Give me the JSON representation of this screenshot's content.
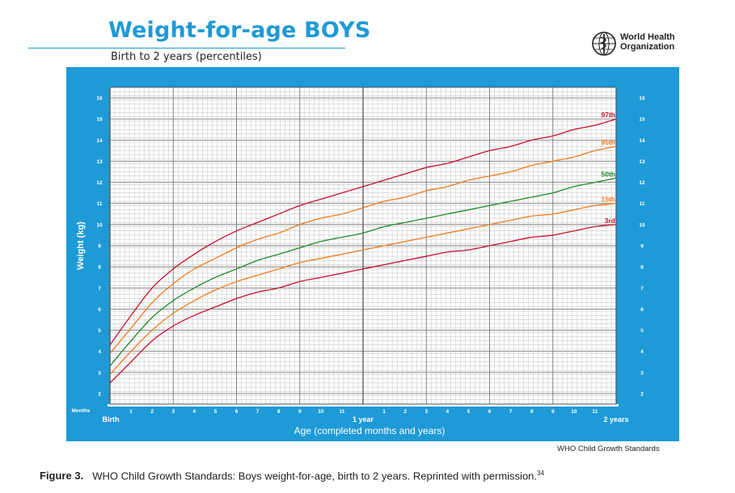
{
  "header": {
    "title": "Weight-for-age BOYS",
    "subtitle": "Birth to 2 years (percentiles)",
    "org_line1": "World Health",
    "org_line2": "Organization"
  },
  "footer": {
    "standards_label": "WHO Child Growth Standards",
    "caption_label": "Figure 3.",
    "caption_text": "WHO Child Growth Standards: Boys weight-for-age, birth to 2 years. Reprinted with permission.",
    "caption_ref": "34"
  },
  "colors": {
    "panel": "#1e9ad6",
    "title": "#1e9ad6",
    "red": "#c8102e",
    "orange": "#f07c1c",
    "green": "#1e8a2e"
  },
  "chart_data": {
    "type": "line",
    "title": "Weight-for-age BOYS",
    "xlabel": "Age (completed months and years)",
    "ylabel": "Weight (kg)",
    "xlim": [
      0,
      24
    ],
    "ylim": [
      1.5,
      16.5
    ],
    "y_ticks": [
      2,
      3,
      4,
      5,
      6,
      7,
      8,
      9,
      10,
      11,
      12,
      13,
      14,
      15,
      16
    ],
    "x_axis_title_left": "Months",
    "x_month_labels": [
      "1",
      "2",
      "3",
      "4",
      "5",
      "6",
      "7",
      "8",
      "9",
      "10",
      "11"
    ],
    "x_major_labels": [
      {
        "month": 0,
        "label": "Birth"
      },
      {
        "month": 12,
        "label": "1 year"
      },
      {
        "month": 24,
        "label": "2 years"
      }
    ],
    "grid": true,
    "x": [
      0,
      1,
      2,
      3,
      4,
      5,
      6,
      7,
      8,
      9,
      10,
      11,
      12,
      13,
      14,
      15,
      16,
      17,
      18,
      19,
      20,
      21,
      22,
      23,
      24
    ],
    "series": [
      {
        "name": "97th",
        "color": "red",
        "values": [
          4.3,
          5.7,
          7.0,
          7.9,
          8.6,
          9.2,
          9.7,
          10.1,
          10.5,
          10.9,
          11.2,
          11.5,
          11.8,
          12.1,
          12.4,
          12.7,
          12.9,
          13.2,
          13.5,
          13.7,
          14.0,
          14.2,
          14.5,
          14.7,
          15.0
        ]
      },
      {
        "name": "85th",
        "color": "orange",
        "values": [
          3.9,
          5.1,
          6.3,
          7.2,
          7.9,
          8.4,
          8.9,
          9.3,
          9.6,
          10.0,
          10.3,
          10.5,
          10.8,
          11.1,
          11.3,
          11.6,
          11.8,
          12.1,
          12.3,
          12.5,
          12.8,
          13.0,
          13.2,
          13.5,
          13.7
        ]
      },
      {
        "name": "50th",
        "color": "green",
        "values": [
          3.3,
          4.5,
          5.6,
          6.4,
          7.0,
          7.5,
          7.9,
          8.3,
          8.6,
          8.9,
          9.2,
          9.4,
          9.6,
          9.9,
          10.1,
          10.3,
          10.5,
          10.7,
          10.9,
          11.1,
          11.3,
          11.5,
          11.8,
          12.0,
          12.2
        ]
      },
      {
        "name": "15th",
        "color": "orange",
        "values": [
          2.9,
          4.0,
          5.0,
          5.8,
          6.4,
          6.9,
          7.3,
          7.6,
          7.9,
          8.2,
          8.4,
          8.6,
          8.8,
          9.0,
          9.2,
          9.4,
          9.6,
          9.8,
          10.0,
          10.2,
          10.4,
          10.5,
          10.7,
          10.9,
          11.0
        ]
      },
      {
        "name": "3rd",
        "color": "red",
        "values": [
          2.5,
          3.5,
          4.5,
          5.2,
          5.7,
          6.1,
          6.5,
          6.8,
          7.0,
          7.3,
          7.5,
          7.7,
          7.9,
          8.1,
          8.3,
          8.5,
          8.7,
          8.8,
          9.0,
          9.2,
          9.4,
          9.5,
          9.7,
          9.9,
          10.0
        ]
      }
    ]
  }
}
